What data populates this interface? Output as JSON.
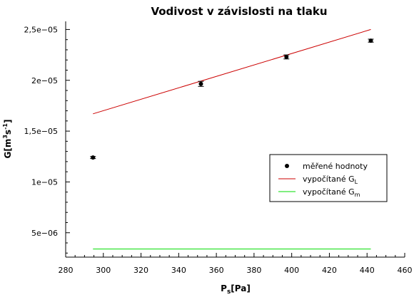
{
  "chart_data": {
    "type": "scatter",
    "title": "Vodivost v závislosti na tlaku",
    "xlabel": {
      "main": "P",
      "sub": "s",
      "rest": "[Pa]"
    },
    "ylabel": {
      "base": "G[m",
      "sup1": "3",
      "mid": "s",
      "sup2": "-1",
      "end": "]"
    },
    "xlim": [
      280,
      460
    ],
    "ylim": [
      2.6e-06,
      2.58e-05
    ],
    "x_ticks": [
      280,
      300,
      320,
      340,
      360,
      380,
      400,
      420,
      440,
      460
    ],
    "y_ticks": [
      {
        "value": 5e-06,
        "label": "5e−06"
      },
      {
        "value": 1e-05,
        "label": "1e−05"
      },
      {
        "value": 1.5e-05,
        "label": "1,5e−05"
      },
      {
        "value": 2e-05,
        "label": "2e−05"
      },
      {
        "value": 2.5e-05,
        "label": "2,5e−05"
      }
    ],
    "legend_position": "right",
    "series": [
      {
        "kind": "points",
        "name": "měřené hodnoty",
        "color": "#000000",
        "x": [
          294.5,
          351.8,
          397.2,
          442.0
        ],
        "y": [
          1.24e-05,
          1.965e-05,
          2.23e-05,
          2.39e-05
        ],
        "err": [
          1e-07,
          2.5e-07,
          2e-07,
          1.5e-07
        ]
      },
      {
        "kind": "line",
        "name_main": "vypočítané G",
        "name_sub": "L",
        "color": "#cc0000",
        "x": [
          294.5,
          442.0
        ],
        "y": [
          1.67e-05,
          2.5e-05
        ]
      },
      {
        "kind": "line",
        "name_main": "vypočítané G",
        "name_sub": "m",
        "color": "#00dd00",
        "x": [
          294.5,
          442.0
        ],
        "y": [
          3.4e-06,
          3.4e-06
        ]
      }
    ]
  }
}
